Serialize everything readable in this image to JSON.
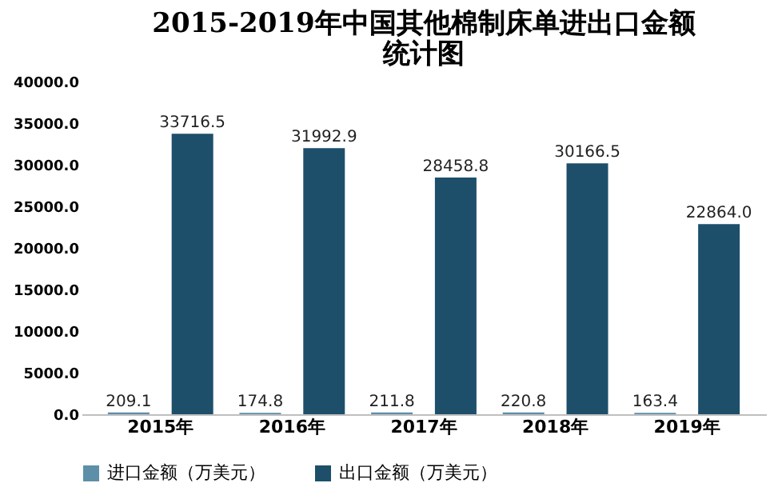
{
  "chart_data": {
    "type": "bar",
    "title": "2015-2019年中国其他棉制床单进出口金额统计图",
    "categories": [
      "2015年",
      "2016年",
      "2017年",
      "2018年",
      "2019年"
    ],
    "series": [
      {
        "name": "进口金额（万美元）",
        "color": "#5d8fa9",
        "values": [
          209.1,
          174.8,
          211.8,
          220.8,
          163.4
        ],
        "value_labels": [
          "209.1",
          "174.8",
          "211.8",
          "220.8",
          "163.4"
        ]
      },
      {
        "name": "出口金额（万美元）",
        "color": "#1d4f6b",
        "values": [
          33716.5,
          31992.9,
          28458.8,
          30166.5,
          22864.0
        ],
        "value_labels": [
          "33716.5",
          "31992.9",
          "28458.8",
          "30166.5",
          "22864.0"
        ]
      }
    ],
    "ylim": [
      0,
      40000
    ],
    "yticks": [
      {
        "value": 0,
        "label": "0.0"
      },
      {
        "value": 5000,
        "label": "5000.0"
      },
      {
        "value": 10000,
        "label": "10000.0"
      },
      {
        "value": 15000,
        "label": "15000.0"
      },
      {
        "value": 20000,
        "label": "20000.0"
      },
      {
        "value": 25000,
        "label": "25000.0"
      },
      {
        "value": 30000,
        "label": "30000.0"
      },
      {
        "value": 35000,
        "label": "35000.0"
      },
      {
        "value": 40000,
        "label": "40000.0"
      }
    ],
    "grid": false,
    "legend": "bottom"
  }
}
